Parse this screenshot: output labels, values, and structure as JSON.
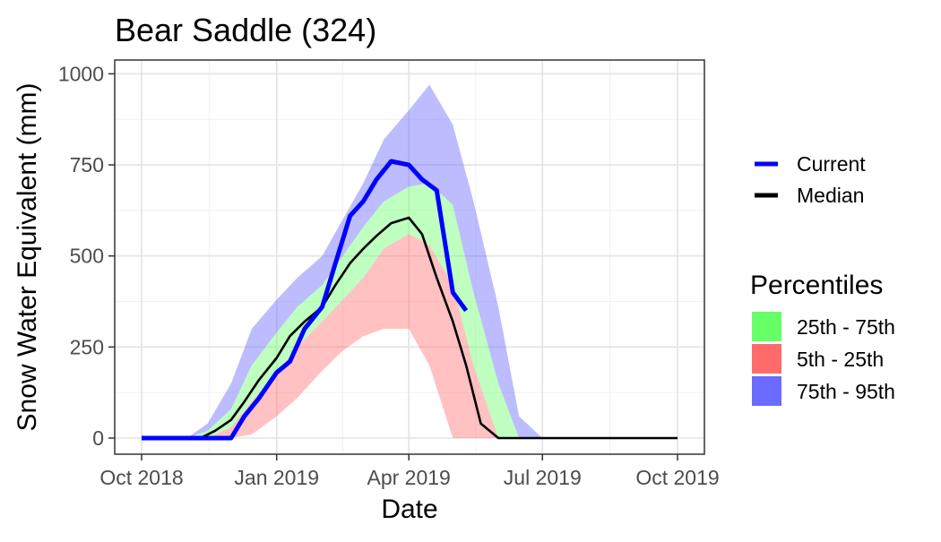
{
  "chart_data": {
    "type": "area",
    "title": "Bear Saddle (324)",
    "xlabel": "Date",
    "ylabel": "Snow Water Equivalent (mm)",
    "xaxis_kind": "date",
    "xlim": [
      "2018-10-01",
      "2019-10-01"
    ],
    "ylim": [
      -50,
      1030
    ],
    "grid": true,
    "x_ticks": [
      {
        "date": "2018-10-01",
        "label": "Oct 2018"
      },
      {
        "date": "2019-01-01",
        "label": "Jan 2019"
      },
      {
        "date": "2019-04-01",
        "label": "Apr 2019"
      },
      {
        "date": "2019-07-01",
        "label": "Jul 2019"
      },
      {
        "date": "2019-10-01",
        "label": "Oct 2019"
      }
    ],
    "y_ticks": [
      {
        "value": 0,
        "label": "0"
      },
      {
        "value": 250,
        "label": "250"
      },
      {
        "value": 500,
        "label": "500"
      },
      {
        "value": 750,
        "label": "750"
      },
      {
        "value": 1000,
        "label": "1000"
      }
    ],
    "legend_lines": [
      {
        "name": "Current",
        "color": "#0000ff"
      },
      {
        "name": "Median",
        "color": "#000000"
      }
    ],
    "legend_bands_title": "Percentiles",
    "legend_bands": [
      {
        "name": "25th - 75th",
        "color": "#66ff66"
      },
      {
        "name": "5th - 25th",
        "color": "#ff6b6b"
      },
      {
        "name": "75th - 95th",
        "color": "#6b6bff"
      }
    ],
    "legend_position": "right",
    "bands": {
      "x": [
        "2018-10-01",
        "2018-10-15",
        "2018-11-01",
        "2018-11-15",
        "2018-12-01",
        "2018-12-15",
        "2019-01-01",
        "2019-01-15",
        "2019-02-01",
        "2019-02-15",
        "2019-03-01",
        "2019-03-15",
        "2019-04-01",
        "2019-04-15",
        "2019-05-01",
        "2019-05-15",
        "2019-06-01",
        "2019-06-15",
        "2019-07-01"
      ],
      "p5": [
        0,
        0,
        0,
        0,
        0,
        10,
        60,
        110,
        185,
        240,
        280,
        300,
        300,
        200,
        0,
        0,
        0,
        0,
        0
      ],
      "p25": [
        0,
        0,
        0,
        0,
        30,
        100,
        180,
        250,
        320,
        380,
        440,
        520,
        560,
        530,
        420,
        200,
        0,
        0,
        0
      ],
      "p75": [
        0,
        0,
        0,
        20,
        80,
        200,
        290,
        360,
        420,
        500,
        580,
        650,
        690,
        700,
        640,
        400,
        150,
        0,
        0
      ],
      "p95": [
        0,
        0,
        0,
        40,
        150,
        300,
        380,
        440,
        500,
        600,
        700,
        820,
        900,
        970,
        860,
        650,
        360,
        60,
        0
      ]
    },
    "series": [
      {
        "name": "Median",
        "color": "#000000",
        "x": [
          "2018-10-01",
          "2018-11-10",
          "2018-11-20",
          "2018-12-01",
          "2018-12-10",
          "2018-12-20",
          "2019-01-01",
          "2019-01-10",
          "2019-01-20",
          "2019-02-01",
          "2019-02-10",
          "2019-02-20",
          "2019-03-01",
          "2019-03-10",
          "2019-03-20",
          "2019-04-01",
          "2019-04-10",
          "2019-04-20",
          "2019-05-01",
          "2019-05-10",
          "2019-05-20",
          "2019-06-01",
          "2019-06-15",
          "2019-10-01"
        ],
        "y": [
          0,
          0,
          20,
          50,
          100,
          160,
          220,
          280,
          320,
          360,
          420,
          480,
          520,
          555,
          590,
          605,
          560,
          440,
          320,
          200,
          40,
          0,
          0,
          0
        ]
      },
      {
        "name": "Current",
        "color": "#0000ff",
        "x": [
          "2018-10-01",
          "2018-12-01",
          "2018-12-10",
          "2018-12-20",
          "2019-01-01",
          "2019-01-10",
          "2019-01-20",
          "2019-02-01",
          "2019-02-10",
          "2019-02-20",
          "2019-03-01",
          "2019-03-10",
          "2019-03-20",
          "2019-04-01",
          "2019-04-10",
          "2019-04-20",
          "2019-05-01",
          "2019-05-10"
        ],
        "y": [
          0,
          0,
          60,
          110,
          180,
          210,
          300,
          360,
          480,
          610,
          650,
          710,
          760,
          750,
          710,
          680,
          400,
          350
        ]
      }
    ]
  }
}
